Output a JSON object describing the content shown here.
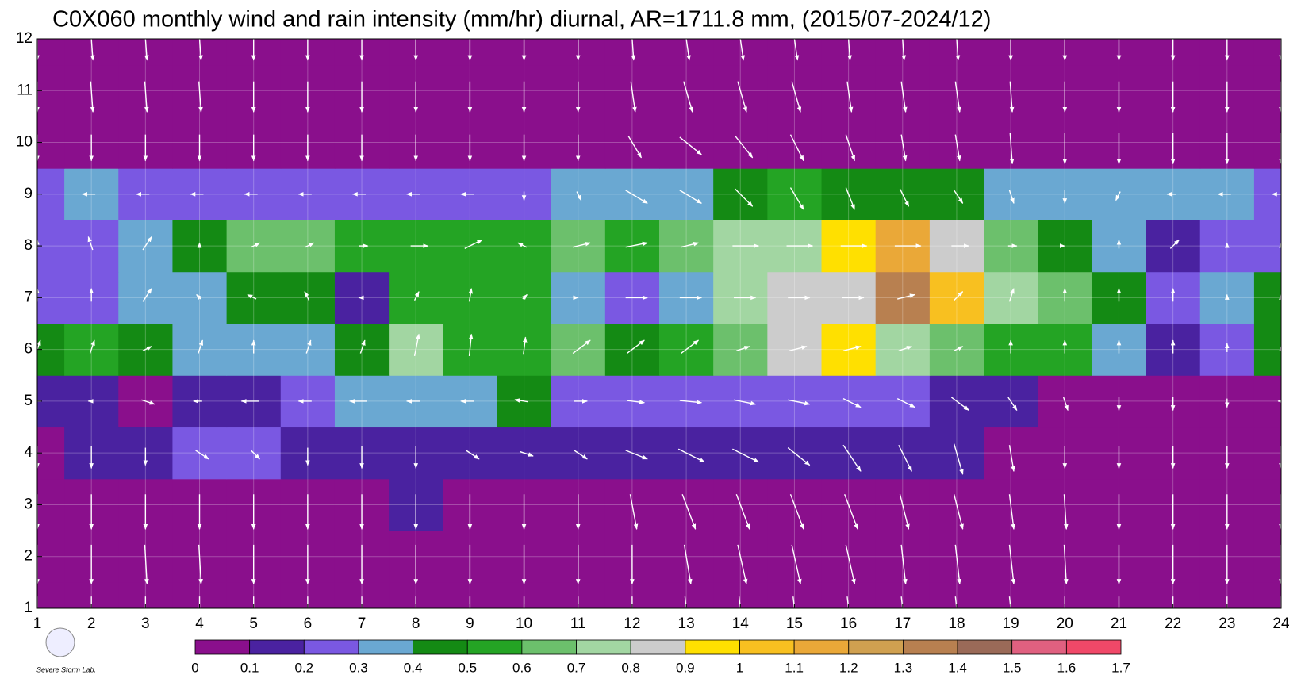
{
  "chart_data": {
    "type": "contour",
    "title": "C0X060 monthly wind and rain intensity (mm/hr) diurnal, AR=1711.8 mm, (2015/07-2024/12)",
    "x": [
      1,
      2,
      3,
      4,
      5,
      6,
      7,
      8,
      9,
      10,
      11,
      12,
      13,
      14,
      15,
      16,
      17,
      18,
      19,
      20,
      21,
      22,
      23,
      24
    ],
    "y": [
      1,
      2,
      3,
      4,
      5,
      6,
      7,
      8,
      9,
      10,
      11,
      12
    ],
    "xlim": [
      1,
      24
    ],
    "ylim": [
      1,
      12
    ],
    "xticks": [
      1,
      2,
      3,
      4,
      5,
      6,
      7,
      8,
      9,
      10,
      11,
      12,
      13,
      14,
      15,
      16,
      17,
      18,
      19,
      20,
      21,
      22,
      23,
      24
    ],
    "yticks": [
      1,
      2,
      3,
      4,
      5,
      6,
      7,
      8,
      9,
      10,
      11,
      12
    ],
    "grid": true,
    "z": [
      [
        0.05,
        0.05,
        0.05,
        0.05,
        0.05,
        0.05,
        0.05,
        0.05,
        0.05,
        0.05,
        0.05,
        0.05,
        0.05,
        0.05,
        0.05,
        0.05,
        0.05,
        0.05,
        0.05,
        0.05,
        0.05,
        0.05,
        0.05,
        0.05
      ],
      [
        0.05,
        0.05,
        0.05,
        0.05,
        0.05,
        0.05,
        0.05,
        0.05,
        0.05,
        0.05,
        0.05,
        0.05,
        0.05,
        0.05,
        0.05,
        0.05,
        0.05,
        0.05,
        0.05,
        0.05,
        0.05,
        0.05,
        0.05,
        0.05
      ],
      [
        0.05,
        0.05,
        0.05,
        0.05,
        0.05,
        0.05,
        0.05,
        0.12,
        0.05,
        0.05,
        0.05,
        0.05,
        0.05,
        0.05,
        0.05,
        0.05,
        0.05,
        0.05,
        0.05,
        0.05,
        0.05,
        0.05,
        0.05,
        0.05
      ],
      [
        0.05,
        0.15,
        0.15,
        0.22,
        0.22,
        0.18,
        0.12,
        0.12,
        0.12,
        0.12,
        0.12,
        0.12,
        0.15,
        0.15,
        0.18,
        0.12,
        0.15,
        0.15,
        0.05,
        0.05,
        0.05,
        0.05,
        0.05,
        0.05
      ],
      [
        0.15,
        0.15,
        0.05,
        0.15,
        0.18,
        0.25,
        0.35,
        0.35,
        0.35,
        0.45,
        0.28,
        0.25,
        0.28,
        0.25,
        0.25,
        0.25,
        0.25,
        0.1,
        0.18,
        0.05,
        0.05,
        0.05,
        0.05,
        0.05
      ],
      [
        0.45,
        0.55,
        0.4,
        0.3,
        0.3,
        0.35,
        0.45,
        0.75,
        0.55,
        0.55,
        0.6,
        0.45,
        0.55,
        0.65,
        0.85,
        0.95,
        0.7,
        0.65,
        0.55,
        0.5,
        0.35,
        0.18,
        0.28,
        0.45
      ],
      [
        0.25,
        0.25,
        0.35,
        0.3,
        0.4,
        0.48,
        0.15,
        0.52,
        0.55,
        0.55,
        0.35,
        0.2,
        0.35,
        0.7,
        0.8,
        0.85,
        1.35,
        1.0,
        0.75,
        0.6,
        0.45,
        0.25,
        0.35,
        0.45
      ],
      [
        0.25,
        0.28,
        0.35,
        0.45,
        0.65,
        0.62,
        0.55,
        0.52,
        0.5,
        0.52,
        0.65,
        0.55,
        0.6,
        0.75,
        0.75,
        0.95,
        1.15,
        0.8,
        0.6,
        0.45,
        0.35,
        0.15,
        0.25,
        0.25
      ],
      [
        0.25,
        0.32,
        0.28,
        0.28,
        0.28,
        0.28,
        0.28,
        0.28,
        0.28,
        0.25,
        0.3,
        0.35,
        0.38,
        0.45,
        0.5,
        0.45,
        0.45,
        0.45,
        0.35,
        0.3,
        0.32,
        0.35,
        0.38,
        0.28
      ],
      [
        0.05,
        0.05,
        0.05,
        0.05,
        0.05,
        0.05,
        0.05,
        0.05,
        0.05,
        0.05,
        0.05,
        0.05,
        0.05,
        0.05,
        0.05,
        0.05,
        0.05,
        0.05,
        0.05,
        0.05,
        0.05,
        0.05,
        0.05,
        0.05
      ],
      [
        0.05,
        0.05,
        0.05,
        0.05,
        0.05,
        0.05,
        0.05,
        0.05,
        0.05,
        0.05,
        0.05,
        0.05,
        0.05,
        0.05,
        0.05,
        0.05,
        0.05,
        0.05,
        0.05,
        0.05,
        0.05,
        0.05,
        0.05,
        0.05
      ],
      [
        0.05,
        0.05,
        0.05,
        0.05,
        0.05,
        0.05,
        0.05,
        0.05,
        0.05,
        0.05,
        0.05,
        0.05,
        0.05,
        0.05,
        0.05,
        0.05,
        0.05,
        0.05,
        0.05,
        0.05,
        0.05,
        0.05,
        0.05,
        0.05
      ]
    ],
    "wind_u": [
      [
        0,
        0,
        0,
        0,
        0,
        0,
        0,
        0,
        0,
        0,
        0,
        0,
        0.1,
        0.1,
        0.1,
        0.1,
        0.1,
        0.1,
        0.1,
        0,
        0,
        0,
        0,
        0
      ],
      [
        0,
        0,
        0.05,
        0.05,
        0,
        0,
        0,
        0,
        0,
        0,
        0,
        0,
        0.15,
        0.2,
        0.2,
        0.2,
        0.1,
        0.1,
        0.1,
        0.05,
        0,
        0,
        0,
        0
      ],
      [
        0,
        0,
        0,
        0,
        0,
        0,
        0,
        0,
        0,
        0,
        0,
        0.15,
        0.3,
        0.3,
        0.3,
        0.3,
        0.2,
        0.2,
        0.1,
        0.05,
        0,
        0,
        0,
        0
      ],
      [
        0,
        0,
        0,
        0.3,
        0.2,
        0,
        0,
        0,
        0.3,
        0.3,
        0.3,
        0.5,
        0.6,
        0.6,
        0.5,
        0.4,
        0.3,
        0.2,
        0.1,
        0,
        0,
        0,
        0,
        0
      ],
      [
        -0.3,
        -0.1,
        0.3,
        -0.2,
        -0.4,
        -0.3,
        -0.4,
        -0.3,
        -0.3,
        -0.3,
        0.3,
        0.4,
        0.5,
        0.5,
        0.5,
        0.4,
        0.4,
        0.4,
        0.2,
        0.1,
        0,
        0,
        0,
        -0.1
      ],
      [
        0.1,
        0.1,
        0.2,
        0.1,
        0,
        0.1,
        0.1,
        0.1,
        0.05,
        0.05,
        0.4,
        0.4,
        0.4,
        0.3,
        0.4,
        0.4,
        0.3,
        0.2,
        0,
        0,
        0,
        0,
        0,
        0
      ],
      [
        0,
        0,
        0.2,
        -0.1,
        -0.2,
        -0.1,
        -0.1,
        0.1,
        0.05,
        0.1,
        0,
        0.5,
        0.5,
        0.5,
        0.5,
        0.5,
        0.4,
        0.2,
        0.1,
        0,
        0,
        0,
        0,
        0
      ],
      [
        0,
        -0.1,
        0.2,
        0,
        0.2,
        0.2,
        0.2,
        0.4,
        0.4,
        -0.2,
        0.4,
        0.5,
        0.4,
        0.6,
        0.6,
        0.6,
        0.6,
        0.4,
        0.2,
        0,
        0,
        0.2,
        0,
        0
      ],
      [
        -0.3,
        -0.3,
        -0.3,
        -0.3,
        -0.3,
        -0.3,
        -0.3,
        -0.3,
        -0.3,
        0,
        0.1,
        0.5,
        0.5,
        0.4,
        0.3,
        0.2,
        0.2,
        0.2,
        0.1,
        0,
        -0.1,
        -0.2,
        -0.3,
        -0.3
      ],
      [
        0,
        0,
        0,
        0,
        0,
        0,
        0,
        0,
        0,
        0,
        0,
        0.3,
        0.5,
        0.4,
        0.3,
        0.2,
        0.1,
        0.1,
        0.05,
        0,
        0,
        0,
        0,
        0
      ],
      [
        0,
        0.05,
        0.05,
        0.05,
        0,
        0,
        0,
        0,
        0,
        0,
        0,
        0.1,
        0.2,
        0.2,
        0.2,
        0.1,
        0.1,
        0.1,
        0.05,
        0,
        0,
        0,
        0,
        0
      ],
      [
        0,
        0.05,
        0.05,
        0.05,
        0,
        0,
        0,
        0,
        0,
        0,
        0,
        0.05,
        0.1,
        0.1,
        0.1,
        0.05,
        0.05,
        0.05,
        0,
        0,
        0,
        0,
        0,
        0
      ]
    ],
    "wind_v": [
      [
        -0.9,
        -0.9,
        -0.9,
        -0.9,
        -0.9,
        -0.9,
        -0.9,
        -0.9,
        -0.9,
        -0.9,
        -0.9,
        -0.9,
        -0.9,
        -0.9,
        -0.9,
        -0.9,
        -0.9,
        -0.9,
        -0.9,
        -0.9,
        -0.9,
        -0.9,
        -0.9,
        -0.9
      ],
      [
        -0.9,
        -0.9,
        -0.9,
        -0.9,
        -0.9,
        -0.9,
        -0.9,
        -0.9,
        -0.9,
        -0.9,
        -0.9,
        -0.9,
        -0.9,
        -0.9,
        -0.9,
        -0.9,
        -0.9,
        -0.9,
        -0.9,
        -0.9,
        -0.9,
        -0.9,
        -0.9,
        -0.9
      ],
      [
        -0.8,
        -0.8,
        -0.8,
        -0.8,
        -0.8,
        -0.8,
        -0.8,
        -0.8,
        -0.8,
        -0.8,
        -0.8,
        -0.8,
        -0.8,
        -0.8,
        -0.8,
        -0.8,
        -0.8,
        -0.8,
        -0.8,
        -0.8,
        -0.8,
        -0.8,
        -0.8,
        -0.8
      ],
      [
        -0.5,
        -0.5,
        -0.4,
        -0.2,
        -0.2,
        -0.4,
        -0.5,
        -0.5,
        -0.2,
        -0.1,
        -0.2,
        -0.2,
        -0.3,
        -0.3,
        -0.4,
        -0.6,
        -0.6,
        -0.7,
        -0.6,
        -0.5,
        -0.5,
        -0.5,
        -0.5,
        -0.5
      ],
      [
        0,
        0,
        -0.1,
        0,
        0,
        0,
        0,
        0,
        0,
        0.05,
        0,
        -0.05,
        -0.05,
        -0.1,
        -0.1,
        -0.2,
        -0.2,
        -0.3,
        -0.3,
        -0.3,
        -0.3,
        -0.3,
        -0.2,
        0
      ],
      [
        0.3,
        0.3,
        0.1,
        0.3,
        0.3,
        0.3,
        0.3,
        0.5,
        0.5,
        0.4,
        0.3,
        0.3,
        0.3,
        0.1,
        0.1,
        0.1,
        0.1,
        0.1,
        0.3,
        0.3,
        0.3,
        0.3,
        0.2,
        0.1
      ],
      [
        0.3,
        0.3,
        0.3,
        0.1,
        0.1,
        0.2,
        0,
        0.2,
        0.3,
        0.1,
        0,
        0,
        0,
        0,
        0,
        0,
        0.1,
        0.2,
        0.3,
        0.3,
        0.3,
        0.3,
        0.1,
        0.1
      ],
      [
        0.2,
        0.3,
        0.3,
        0.1,
        0.1,
        0.1,
        0,
        0,
        0.2,
        0.1,
        0.1,
        0.1,
        0.1,
        0,
        0,
        0,
        0,
        0,
        0,
        0,
        0.2,
        0.2,
        0.1,
        0.1
      ],
      [
        0,
        0,
        0,
        0,
        0,
        0,
        0,
        0,
        0,
        -0.2,
        -0.2,
        -0.3,
        -0.3,
        -0.4,
        -0.5,
        -0.5,
        -0.4,
        -0.3,
        -0.3,
        -0.3,
        -0.2,
        0,
        0,
        0
      ],
      [
        -0.6,
        -0.6,
        -0.6,
        -0.6,
        -0.6,
        -0.6,
        -0.6,
        -0.6,
        -0.6,
        -0.6,
        -0.6,
        -0.5,
        -0.4,
        -0.5,
        -0.6,
        -0.6,
        -0.6,
        -0.6,
        -0.7,
        -0.7,
        -0.7,
        -0.7,
        -0.7,
        -0.7
      ],
      [
        -0.7,
        -0.7,
        -0.7,
        -0.7,
        -0.7,
        -0.7,
        -0.7,
        -0.7,
        -0.7,
        -0.7,
        -0.7,
        -0.7,
        -0.7,
        -0.7,
        -0.7,
        -0.7,
        -0.7,
        -0.7,
        -0.7,
        -0.7,
        -0.7,
        -0.7,
        -0.7,
        -0.7
      ],
      [
        -0.7,
        -0.7,
        -0.7,
        -0.7,
        -0.7,
        -0.7,
        -0.7,
        -0.7,
        -0.7,
        -0.7,
        -0.7,
        -0.7,
        -0.7,
        -0.7,
        -0.7,
        -0.7,
        -0.7,
        -0.7,
        -0.7,
        -0.7,
        -0.7,
        -0.7,
        -0.7,
        -0.7
      ]
    ],
    "levels": [
      0,
      0.1,
      0.2,
      0.3,
      0.4,
      0.5,
      0.6,
      0.7,
      0.8,
      0.9,
      1,
      1.1,
      1.2,
      1.3,
      1.4,
      1.5,
      1.6,
      1.7
    ],
    "level_colors": [
      "#8a0f8c",
      "#4a22a0",
      "#7a58e2",
      "#6aa8d2",
      "#148a14",
      "#24a424",
      "#6cc06c",
      "#a2d6a2",
      "#cccccc",
      "#ffe000",
      "#f8c020",
      "#eaa838",
      "#d0a050",
      "#b88050",
      "#9a6a58",
      "#e06080",
      "#f04868",
      "#d02838"
    ],
    "logo_text": "Severe Storm Lab."
  }
}
